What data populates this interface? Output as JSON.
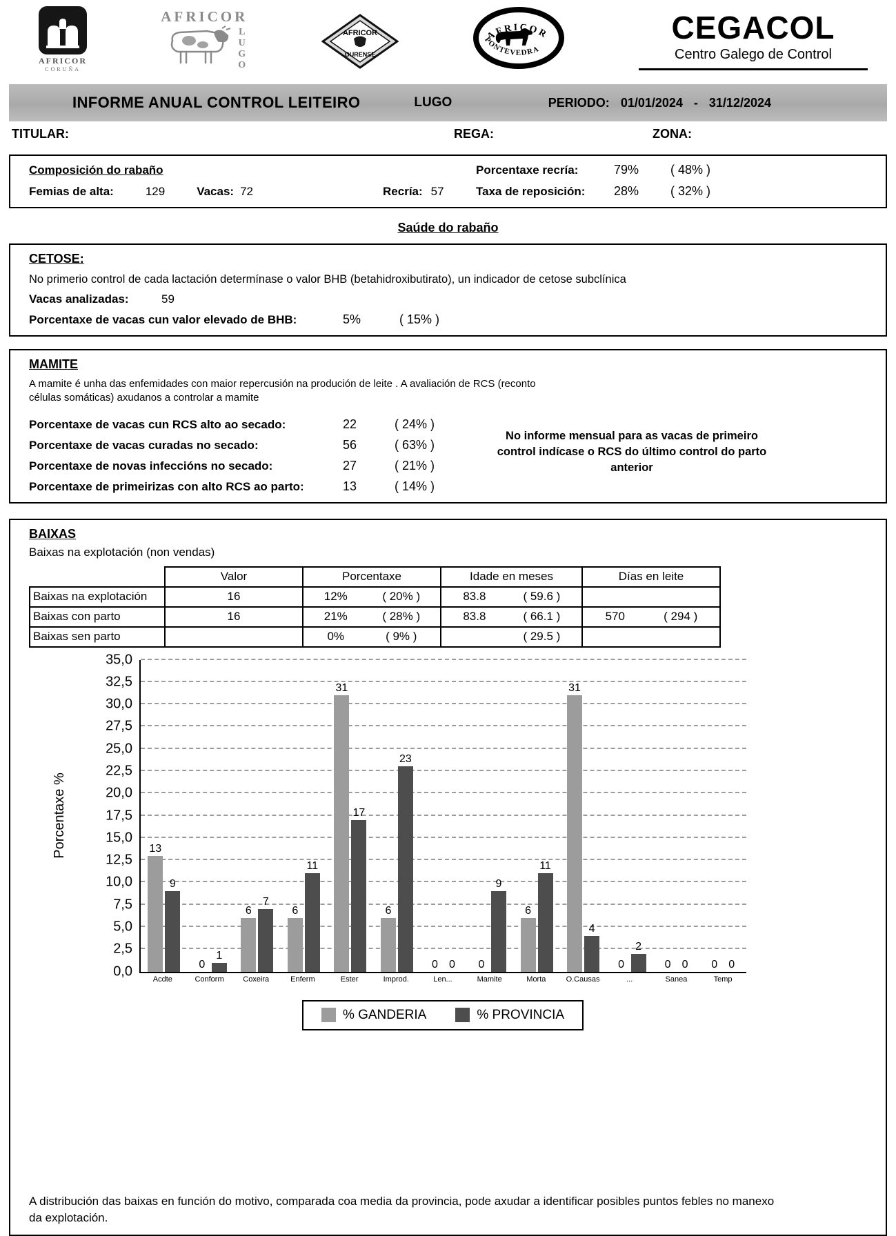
{
  "header": {
    "logos": {
      "coruna": {
        "brand": "AFRICOR",
        "sub": "CORUÑA"
      },
      "lugo": {
        "brand": "AFRICOR",
        "sub": "LUGO"
      },
      "ourense": {
        "brand": "AFRICOR",
        "sub": "OURENSE"
      },
      "pontevedra": {
        "brand": "AFRICOR",
        "sub": "PONTEVEDRA"
      }
    },
    "org": {
      "name": "CEGACOL",
      "subtitle": "Centro Galego de Control"
    }
  },
  "title_bar": {
    "title": "INFORME ANUAL CONTROL LEITEIRO",
    "province": "LUGO",
    "period_label": "PERIODO:",
    "period_start": "01/01/2024",
    "period_separator": "-",
    "period_end": "31/12/2024"
  },
  "meta": {
    "titular_label": "TITULAR:",
    "rega_label": "REGA:",
    "zona_label": "ZONA:"
  },
  "composicion": {
    "title": "Composición do rabaño",
    "femias_label": "Femias de alta:",
    "femias_value": "129",
    "vacas_label": "Vacas:",
    "vacas_value": "72",
    "recria_label": "Recría:",
    "recria_value": "57",
    "stats": [
      {
        "label": "Porcentaxe recría:",
        "value": "79%",
        "ref": "( 48% )"
      },
      {
        "label": "Taxa de reposición:",
        "value": "28%",
        "ref": "( 32% )"
      }
    ]
  },
  "saude_heading": "Saúde do rabaño",
  "cetose": {
    "title": "CETOSE:",
    "description": "No primerio control de cada lactación determínase o valor BHB (betahidroxibutirato), un indicador de cetose subclínica",
    "analizadas_label": "Vacas analizadas:",
    "analizadas_value": "59",
    "bhb_label": "Porcentaxe de vacas cun valor elevado de BHB:",
    "bhb_value": "5%",
    "bhb_ref": "( 15% )"
  },
  "mamite": {
    "title": "MAMITE",
    "description": "A mamite é unha das enfemidades con maior repercusión na produción de leite . A avaliación de RCS (reconto células somáticas) axudanos a controlar a mamite",
    "rows": [
      {
        "label": "Porcentaxe de vacas cun RCS alto ao secado:",
        "value": "22",
        "ref": "( 24% )"
      },
      {
        "label": "Porcentaxe de vacas curadas no secado:",
        "value": "56",
        "ref": "( 63% )"
      },
      {
        "label": "Porcentaxe de novas infeccións no secado:",
        "value": "27",
        "ref": "( 21% )"
      },
      {
        "label": "Porcentaxe de primeirizas con alto RCS ao parto:",
        "value": "13",
        "ref": "( 14% )"
      }
    ],
    "note": "No informe mensual para as vacas de primeiro control indícase o RCS do último control do parto anterior"
  },
  "baixas": {
    "title": "BAIXAS",
    "subtitle": "Baixas na explotación (non vendas)",
    "table": {
      "headers": [
        "Valor",
        "Porcentaxe",
        "Idade en meses",
        "Días en leite"
      ],
      "rows": [
        {
          "label": "Baixas na explotación",
          "valor": "16",
          "pct": "12%",
          "pct_ref": "( 20% )",
          "idade": "83.8",
          "idade_ref": "( 59.6 )",
          "dias": "",
          "dias_ref": ""
        },
        {
          "label": "Baixas con parto",
          "valor": "16",
          "pct": "21%",
          "pct_ref": "( 28% )",
          "idade": "83.8",
          "idade_ref": "( 66.1 )",
          "dias": "570",
          "dias_ref": "( 294 )"
        },
        {
          "label": "Baixas sen parto",
          "valor": "",
          "pct": "0%",
          "pct_ref": "( 9% )",
          "idade": "",
          "idade_ref": "( 29.5 )",
          "dias": "",
          "dias_ref": ""
        }
      ]
    },
    "footnote": "A distribución das baixas en función do motivo, comparada coa media da provincia, pode axudar a identificar posibles puntos febles no manexo da explotación."
  },
  "chart_data": {
    "type": "bar",
    "title": "",
    "ylabel": "Porcentaxe %",
    "xlabel": "",
    "ylim": [
      0,
      35
    ],
    "ytick_step": 2.5,
    "grid": true,
    "legend_position": "bottom",
    "categories": [
      "Acdte",
      "Conform",
      "Coxeira",
      "Enferm",
      "Ester",
      "Improd.",
      "Len...",
      "Mamite",
      "Morta",
      "O.Causas",
      "...",
      "Sanea",
      "Temp"
    ],
    "series": [
      {
        "name": "% GANDERIA",
        "color": "#9c9c9c",
        "values": [
          13,
          0,
          6,
          6,
          31,
          6,
          0,
          0,
          6,
          31,
          0,
          0,
          0
        ]
      },
      {
        "name": "% PROVINCIA",
        "color": "#4d4d4d",
        "values": [
          9,
          1,
          7,
          11,
          17,
          23,
          0,
          9,
          11,
          4,
          2,
          0,
          0
        ]
      }
    ]
  }
}
